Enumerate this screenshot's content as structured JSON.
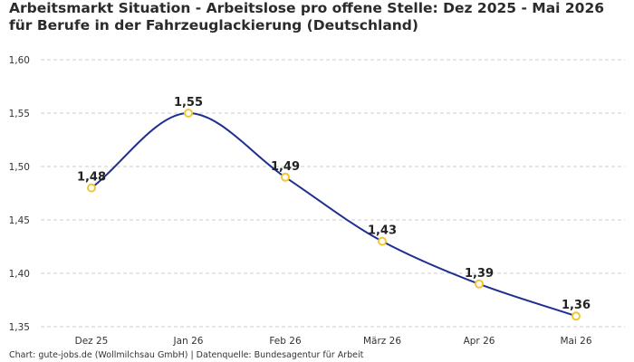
{
  "title": "Arbeitsmarkt Situation - Arbeitslose pro offene Stelle: Dez 2025 - Mai 2026 für Berufe in der Fahrzeuglackierung (Deutschland)",
  "footer": "Chart: gute-jobs.de (Wollmilchsau GmbH) | Datenquelle: Bundesagentur für Arbeit",
  "chart_data": {
    "type": "line",
    "title": "Arbeitsmarkt Situation - Arbeitslose pro offene Stelle: Dez 2025 - Mai 2026 für Berufe in der Fahrzeuglackierung (Deutschland)",
    "categories": [
      "Dez 25",
      "Jan 26",
      "Feb 26",
      "März 26",
      "Apr 26",
      "Mai 26"
    ],
    "values": [
      1.48,
      1.55,
      1.49,
      1.43,
      1.39,
      1.36
    ],
    "data_labels": [
      "1,48",
      "1,55",
      "1,49",
      "1,43",
      "1,39",
      "1,36"
    ],
    "y_ticks": [
      "1,35",
      "1,40",
      "1,45",
      "1,50",
      "1,55",
      "1,60"
    ],
    "y_tick_values": [
      1.35,
      1.4,
      1.45,
      1.5,
      1.55,
      1.6
    ],
    "ylim": [
      1.35,
      1.6
    ],
    "xlabel": "",
    "ylabel": "",
    "grid": true,
    "smooth": true,
    "legend": "none",
    "colors": {
      "line": "#1f2f8f",
      "marker_stroke": "#f2c72f",
      "marker_fill": "#ffffff",
      "grid": "#cccccc",
      "label": "#222222"
    }
  }
}
